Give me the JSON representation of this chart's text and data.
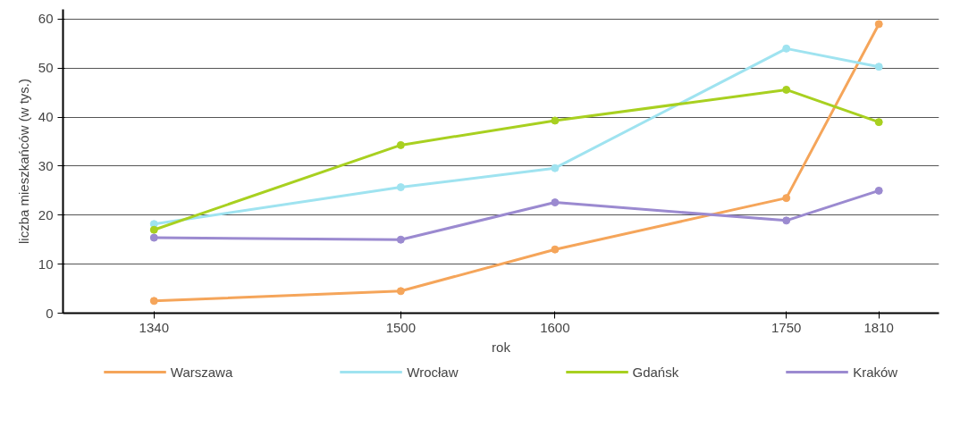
{
  "chart_data": {
    "type": "line",
    "xlabel": "rok",
    "ylabel": "liczba mieszkańców (w tys.)",
    "x": [
      1340,
      1500,
      1600,
      1750,
      1810
    ],
    "xlim": [
      1281,
      1849
    ],
    "xticks": [
      1340,
      1500,
      1600,
      1750,
      1810
    ],
    "ylim": [
      0,
      62
    ],
    "yticks": [
      0,
      10,
      20,
      30,
      40,
      50,
      60
    ],
    "grid": "y",
    "legend": "bottom",
    "marker": "circle",
    "line_style": "solid",
    "series": [
      {
        "name": "Warszawa",
        "color": "#f5a55a",
        "values": [
          2.5,
          4.5,
          13,
          23.5,
          59
        ]
      },
      {
        "name": "Wrocław",
        "color": "#9fe3f0",
        "values": [
          18.2,
          25.7,
          29.6,
          54,
          50.3
        ]
      },
      {
        "name": "Gdańsk",
        "color": "#a8d020",
        "values": [
          17,
          34.3,
          39.3,
          45.6,
          39
        ]
      },
      {
        "name": "Kraków",
        "color": "#9b8ad0",
        "values": [
          15.4,
          15,
          22.6,
          18.9,
          25
        ]
      }
    ]
  }
}
